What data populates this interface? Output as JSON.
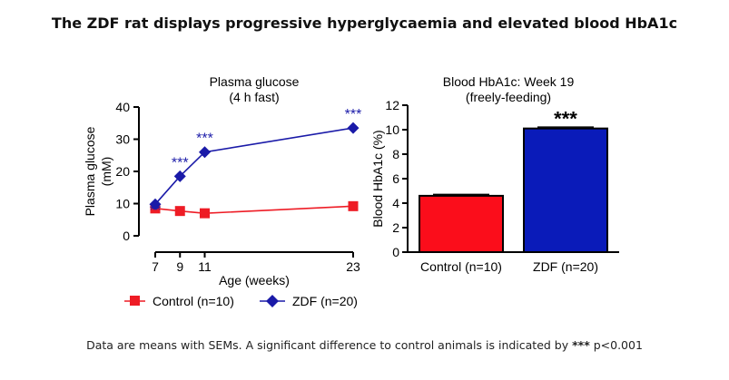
{
  "title": "The ZDF rat displays progressive hyperglycaemia and elevated blood HbA1c",
  "footnote": {
    "before": "Data are means with SEMs. A significant difference to control animals is indicated by ",
    "bold": "***",
    "after": " p<0.001"
  },
  "chart_data": [
    {
      "type": "line",
      "title": "Plasma glucose",
      "subtitle": "(4 h fast)",
      "xlabel": "Age (weeks)",
      "ylabel": "Plasma glucose",
      "ylabel2": "(mM)",
      "x": [
        7,
        9,
        11,
        23
      ],
      "x_ticks": [
        "7",
        "9",
        "11",
        "23"
      ],
      "y_ticks": [
        "0",
        "10",
        "20",
        "30",
        "40"
      ],
      "ylim": [
        0,
        40
      ],
      "series": [
        {
          "name": "Control (n=10)",
          "values": [
            8.5,
            7.7,
            7.0,
            9.2
          ],
          "color": "#ee1c25",
          "marker": "square",
          "annotations": [
            "",
            "",
            "",
            ""
          ]
        },
        {
          "name": "ZDF (n=20)",
          "values": [
            9.8,
            18.5,
            26.0,
            33.5
          ],
          "color": "#1a1aa8",
          "marker": "diamond",
          "annotations": [
            "**",
            "***",
            "***",
            "***"
          ]
        }
      ],
      "legend": "bottom"
    },
    {
      "type": "bar",
      "title": "Blood HbA1c: Week 19",
      "subtitle": "(freely-feeding)",
      "ylabel": "Blood HbA1c (%)",
      "categories": [
        "Control (n=10)",
        "ZDF (n=20)"
      ],
      "values": [
        4.6,
        10.1
      ],
      "colors": [
        "#fb0d1b",
        "#0a1bb9"
      ],
      "annotations": [
        "",
        "***"
      ],
      "y_ticks": [
        "0",
        "2",
        "4",
        "6",
        "8",
        "10",
        "12"
      ],
      "ylim": [
        0,
        12
      ]
    }
  ]
}
